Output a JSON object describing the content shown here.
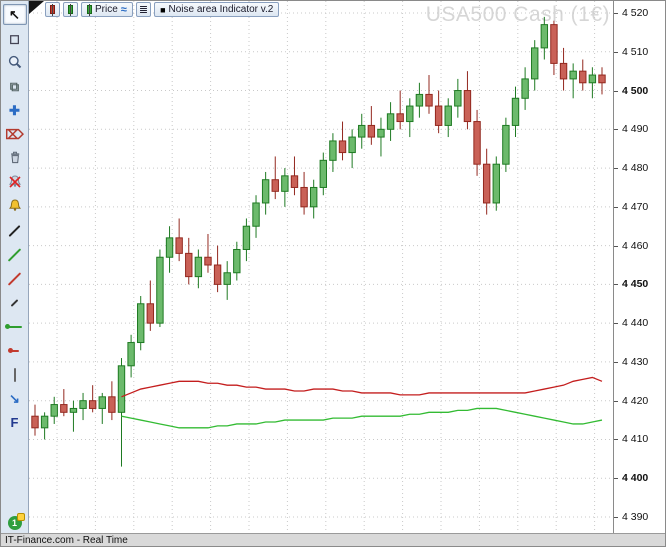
{
  "top_toolbar": {
    "price_label": "Price",
    "noise_label": "Noise area Indicator v.2",
    "list_icon": "≣",
    "curve_icon": "≈",
    "square_icon": "■"
  },
  "status_bar": {
    "text": "IT-Finance.com - Real Time"
  },
  "left_toolbar": {
    "items": [
      {
        "name": "cursor-icon",
        "kind": "glyph",
        "glyph": "↖",
        "color": "#111",
        "selected": true
      },
      {
        "name": "zoom-box-icon",
        "kind": "glyph",
        "glyph": "◻",
        "color": "#445"
      },
      {
        "name": "magnifier-icon",
        "kind": "magnifier"
      },
      {
        "name": "copy-icon",
        "kind": "glyph",
        "glyph": "⧉",
        "color": "#566"
      },
      {
        "name": "move-icon",
        "kind": "glyph",
        "glyph": "✚",
        "color": "#2b6cc4"
      },
      {
        "name": "eraser-icon",
        "kind": "glyph",
        "glyph": "⌦",
        "color": "#b33a2e"
      },
      {
        "name": "trash-icon",
        "kind": "trash"
      },
      {
        "name": "alarm-off-icon",
        "kind": "bell",
        "variant": "off"
      },
      {
        "name": "alarm-icon",
        "kind": "bell",
        "variant": "on"
      },
      {
        "name": "trendline-icon",
        "kind": "line",
        "color": "#222",
        "w": 15,
        "rot": -45
      },
      {
        "name": "trendline-green-icon",
        "kind": "line",
        "color": "#2f9e2f",
        "w": 17,
        "rot": -45
      },
      {
        "name": "trendline-red-icon",
        "kind": "line",
        "color": "#c23a2e",
        "w": 17,
        "rot": -45
      },
      {
        "name": "segment-icon",
        "kind": "line",
        "color": "#333",
        "w": 9,
        "rot": -45
      },
      {
        "name": "horizontal-line-icon",
        "kind": "line",
        "color": "#2f9e2f",
        "w": 14,
        "rot": 0,
        "dot": true
      },
      {
        "name": "red-marker-line-icon",
        "kind": "line",
        "color": "#c23a2e",
        "w": 8,
        "rot": 0,
        "dot": true
      },
      {
        "name": "vertical-line-icon",
        "kind": "line",
        "color": "#666",
        "w": 14,
        "rot": 90
      },
      {
        "name": "arrow-line-icon",
        "kind": "glyph",
        "glyph": "↘",
        "color": "#2b6cc4"
      },
      {
        "name": "fibonacci-icon",
        "kind": "glyph",
        "glyph": "F",
        "color": "#223a8f"
      }
    ],
    "badge": {
      "label": "1"
    }
  },
  "chart_data": {
    "type": "candlestick",
    "title": "USA500 Cash (1€)",
    "ylabel": "price",
    "ylim": [
      4388,
      4524
    ],
    "grid": true,
    "y_ticks": {
      "values": [
        4520,
        4510,
        4500,
        4490,
        4480,
        4470,
        4460,
        4450,
        4440,
        4430,
        4420,
        4410,
        4400,
        4390
      ],
      "labels": [
        "4 520",
        "4 510",
        "4 500",
        "4 490",
        "4 480",
        "4 470",
        "4 460",
        "4 450",
        "4 440",
        "4 430",
        "4 420",
        "4 410",
        "4 400",
        "4 390"
      ],
      "bold_values": [
        4500,
        4450,
        4400
      ]
    },
    "colors": {
      "up_fill": "#6cba6c",
      "up_stroke": "#1e7a22",
      "down_fill": "#c96157",
      "down_stroke": "#93281f",
      "noise_upper": "#c41e1e",
      "noise_lower": "#33bb33",
      "grid": "#c9c9c9",
      "watermark": "#d6d6d6"
    },
    "candles": [
      [
        4416,
        4419,
        4411,
        4413
      ],
      [
        4413,
        4417,
        4410,
        4416
      ],
      [
        4416,
        4421,
        4414,
        4419
      ],
      [
        4419,
        4423,
        4416,
        4417
      ],
      [
        4417,
        4420,
        4412,
        4418
      ],
      [
        4418,
        4422,
        4415,
        4420
      ],
      [
        4420,
        4424,
        4417,
        4418
      ],
      [
        4418,
        4422,
        4414,
        4421
      ],
      [
        4421,
        4425,
        4415,
        4417
      ],
      [
        4417,
        4431,
        4403,
        4429
      ],
      [
        4429,
        4437,
        4426,
        4435
      ],
      [
        4435,
        4447,
        4433,
        4445
      ],
      [
        4445,
        4451,
        4438,
        4440
      ],
      [
        4440,
        4459,
        4439,
        4457
      ],
      [
        4457,
        4465,
        4453,
        4462
      ],
      [
        4462,
        4467,
        4456,
        4458
      ],
      [
        4458,
        4462,
        4450,
        4452
      ],
      [
        4452,
        4459,
        4449,
        4457
      ],
      [
        4457,
        4463,
        4453,
        4455
      ],
      [
        4455,
        4460,
        4448,
        4450
      ],
      [
        4450,
        4456,
        4446,
        4453
      ],
      [
        4453,
        4461,
        4451,
        4459
      ],
      [
        4459,
        4467,
        4456,
        4465
      ],
      [
        4465,
        4473,
        4462,
        4471
      ],
      [
        4471,
        4479,
        4468,
        4477
      ],
      [
        4477,
        4483,
        4472,
        4474
      ],
      [
        4474,
        4480,
        4470,
        4478
      ],
      [
        4478,
        4483,
        4473,
        4475
      ],
      [
        4475,
        4479,
        4468,
        4470
      ],
      [
        4470,
        4477,
        4467,
        4475
      ],
      [
        4475,
        4484,
        4473,
        4482
      ],
      [
        4482,
        4489,
        4479,
        4487
      ],
      [
        4487,
        4492,
        4482,
        4484
      ],
      [
        4484,
        4490,
        4480,
        4488
      ],
      [
        4488,
        4494,
        4485,
        4491
      ],
      [
        4491,
        4496,
        4486,
        4488
      ],
      [
        4488,
        4493,
        4483,
        4490
      ],
      [
        4490,
        4497,
        4487,
        4494
      ],
      [
        4494,
        4500,
        4490,
        4492
      ],
      [
        4492,
        4498,
        4488,
        4496
      ],
      [
        4496,
        4502,
        4493,
        4499
      ],
      [
        4499,
        4504,
        4494,
        4496
      ],
      [
        4496,
        4500,
        4489,
        4491
      ],
      [
        4491,
        4498,
        4488,
        4496
      ],
      [
        4496,
        4503,
        4493,
        4500
      ],
      [
        4500,
        4505,
        4490,
        4492
      ],
      [
        4492,
        4495,
        4478,
        4481
      ],
      [
        4481,
        4485,
        4468,
        4471
      ],
      [
        4471,
        4483,
        4469,
        4481
      ],
      [
        4481,
        4493,
        4479,
        4491
      ],
      [
        4491,
        4501,
        4488,
        4498
      ],
      [
        4498,
        4506,
        4495,
        4503
      ],
      [
        4503,
        4513,
        4500,
        4511
      ],
      [
        4511,
        4519,
        4508,
        4517
      ],
      [
        4517,
        4518,
        4504,
        4507
      ],
      [
        4507,
        4511,
        4500,
        4503
      ],
      [
        4503,
        4507,
        4498,
        4505
      ],
      [
        4505,
        4508,
        4500,
        4502
      ],
      [
        4502,
        4506,
        4498,
        4504
      ],
      [
        4504,
        4506,
        4499,
        4502
      ]
    ],
    "noise_upper": {
      "start_index": 9,
      "values": [
        4421,
        4422,
        4423,
        4423.5,
        4424,
        4424.5,
        4425,
        4425,
        4425,
        4424.5,
        4424.5,
        4424,
        4424,
        4423.5,
        4423.5,
        4423,
        4423,
        4423,
        4422.5,
        4422.5,
        4423,
        4423,
        4423,
        4422.5,
        4422.5,
        4422,
        4422,
        4422,
        4422,
        4421.5,
        4421.5,
        4421.5,
        4422,
        4422,
        4422,
        4422,
        4422,
        4422,
        4422,
        4422,
        4422,
        4422,
        4422,
        4422.5,
        4423,
        4423.5,
        4424,
        4425,
        4425.5,
        4426,
        4425
      ]
    },
    "noise_lower": {
      "start_index": 9,
      "values": [
        4416,
        4415.5,
        4415,
        4414.5,
        4414,
        4413.5,
        4413,
        4413,
        4413,
        4413,
        4413.5,
        4413.5,
        4414,
        4414,
        4414,
        4414.5,
        4414.5,
        4415,
        4415,
        4415,
        4415,
        4415,
        4415.5,
        4415.5,
        4415.5,
        4416,
        4416,
        4416,
        4416,
        4416,
        4416.5,
        4416.5,
        4417,
        4417,
        4417,
        4417.5,
        4417.5,
        4418,
        4418,
        4418,
        4417.5,
        4417,
        4416.5,
        4416,
        4415.5,
        4415,
        4414.5,
        4414,
        4414,
        4414.5,
        4415
      ]
    }
  }
}
